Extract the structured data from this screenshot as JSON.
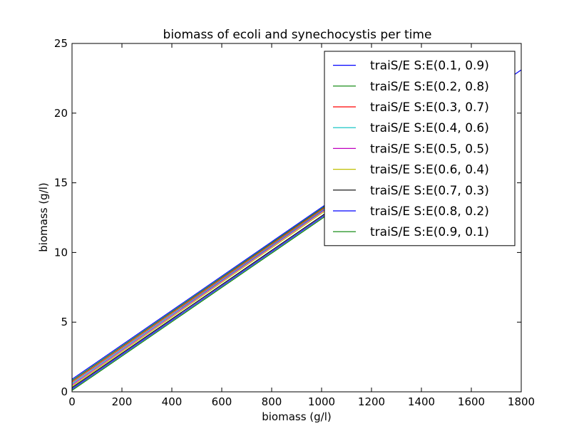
{
  "chart_data": {
    "type": "line",
    "title": "biomass of ecoli and synechocystis per time",
    "xlabel": "biomass (g/l)",
    "ylabel": "biomass (g/l)",
    "xlim": [
      0,
      1800
    ],
    "ylim": [
      0,
      25
    ],
    "xticks": [
      "0",
      "200",
      "400",
      "600",
      "800",
      "1000",
      "1200",
      "1400",
      "1600",
      "1800"
    ],
    "yticks": [
      "0",
      "5",
      "10",
      "15",
      "20",
      "25"
    ],
    "grid": false,
    "legend_position": "top-right",
    "series": [
      {
        "name": "traiS/E S:E(0.1, 0.9)",
        "color": "#0000ff",
        "x": [
          0,
          1800
        ],
        "y": [
          0.9,
          23.1
        ]
      },
      {
        "name": "traiS/E S:E(0.2, 0.8)",
        "color": "#008000",
        "x": [
          0,
          1620
        ],
        "y": [
          0.8,
          20.8
        ]
      },
      {
        "name": "traiS/E S:E(0.3, 0.7)",
        "color": "#ff0000",
        "x": [
          0,
          1440
        ],
        "y": [
          0.7,
          18.5
        ]
      },
      {
        "name": "traiS/E S:E(0.4, 0.6)",
        "color": "#00bfbf",
        "x": [
          0,
          1260
        ],
        "y": [
          0.6,
          16.2
        ]
      },
      {
        "name": "traiS/E S:E(0.5, 0.5)",
        "color": "#bf00bf",
        "x": [
          0,
          1080
        ],
        "y": [
          0.5,
          13.9
        ]
      },
      {
        "name": "traiS/E S:E(0.6, 0.4)",
        "color": "#bfbf00",
        "x": [
          0,
          1080
        ],
        "y": [
          0.4,
          13.8
        ]
      },
      {
        "name": "traiS/E S:E(0.7, 0.3)",
        "color": "#000000",
        "x": [
          0,
          1080
        ],
        "y": [
          0.3,
          13.6
        ]
      },
      {
        "name": "traiS/E S:E(0.8, 0.2)",
        "color": "#0000ff",
        "x": [
          0,
          1080
        ],
        "y": [
          0.2,
          13.5
        ]
      },
      {
        "name": "traiS/E S:E(0.9, 0.1)",
        "color": "#008000",
        "x": [
          0,
          1080
        ],
        "y": [
          0.1,
          13.4
        ]
      }
    ]
  }
}
